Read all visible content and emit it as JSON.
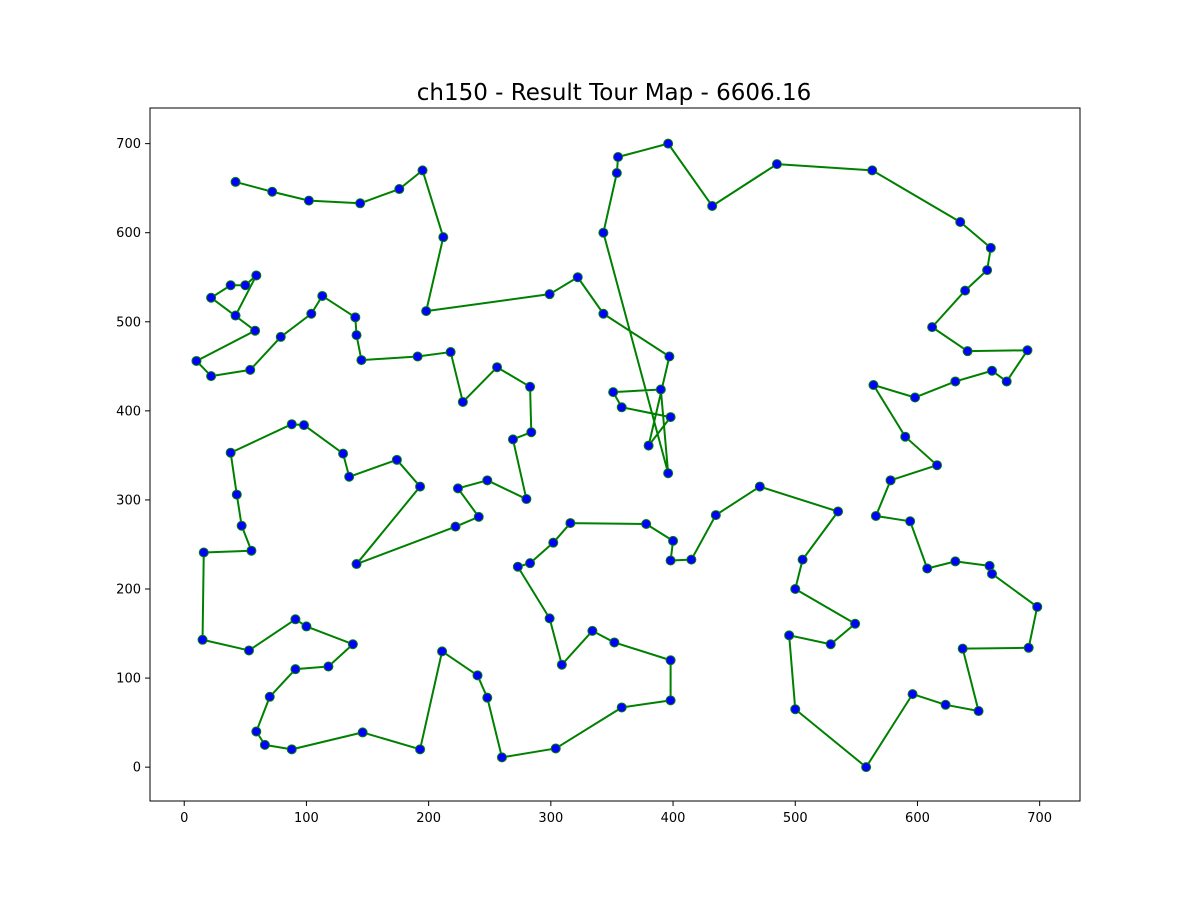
{
  "chart_data": {
    "type": "line",
    "title": "ch150 - Result Tour Map - 6606.16",
    "xlabel": "",
    "ylabel": "",
    "xlim": [
      -28,
      733
    ],
    "ylim": [
      -38,
      740
    ],
    "xticks": [
      0,
      100,
      200,
      300,
      400,
      500,
      600,
      700
    ],
    "yticks": [
      0,
      100,
      200,
      300,
      400,
      500,
      600,
      700
    ],
    "xtick_labels": [
      "0",
      "100",
      "200",
      "300",
      "400",
      "500",
      "600",
      "700"
    ],
    "ytick_labels": [
      "0",
      "100",
      "200",
      "300",
      "400",
      "500",
      "600",
      "700"
    ],
    "grid": false,
    "legend": "none",
    "colors": {
      "route": "#008000",
      "city": "#0000ff",
      "frame": "#000000"
    },
    "series": [
      {
        "x": [
          42,
          72,
          102,
          144,
          176,
          195,
          212,
          198,
          299,
          322,
          343,
          397,
          380,
          398,
          358,
          351,
          390,
          396,
          343,
          354,
          355,
          396,
          432,
          485,
          563,
          635,
          660,
          657,
          639,
          612,
          641,
          690,
          673,
          661,
          631,
          598,
          564,
          590,
          616,
          578,
          566,
          594,
          608,
          631,
          659,
          661,
          698,
          691,
          637,
          650,
          623,
          596,
          558,
          500,
          495,
          529,
          549,
          500,
          506,
          535,
          471,
          435,
          415,
          398,
          400,
          378,
          316,
          302,
          283,
          273,
          299,
          309,
          334,
          352,
          398,
          398,
          358,
          304,
          260,
          248,
          240,
          211,
          193,
          146,
          88,
          66,
          59,
          70,
          91,
          118,
          138,
          100,
          91,
          53,
          15,
          16,
          55,
          47,
          43,
          38,
          88,
          98,
          130,
          135,
          174,
          193,
          141,
          222,
          241,
          224,
          248,
          280,
          269,
          284,
          283,
          256,
          228,
          218,
          191,
          145,
          141,
          140,
          113,
          104,
          79,
          54,
          22,
          10,
          58,
          22,
          38,
          50,
          59,
          42,
          41
        ],
        "y": [
          657,
          646,
          636,
          633,
          649,
          670,
          595,
          512,
          531,
          550,
          509,
          461,
          361,
          393,
          404,
          421,
          424,
          330,
          600,
          667,
          685,
          700,
          630,
          677,
          670,
          612,
          583,
          558,
          535,
          494,
          467,
          468,
          433,
          445,
          433,
          415,
          429,
          371,
          339,
          322,
          282,
          276,
          223,
          231,
          226,
          217,
          180,
          134,
          133,
          63,
          70,
          82,
          0,
          65,
          148,
          138,
          161,
          200,
          233,
          287,
          315,
          283,
          233,
          232,
          254,
          273,
          274,
          252,
          229,
          225,
          167,
          115,
          153,
          140,
          120,
          75,
          67,
          21,
          11,
          78,
          103,
          130,
          20,
          39,
          20,
          25,
          40,
          79,
          110,
          113,
          138,
          158,
          166,
          131,
          143,
          241,
          243,
          271,
          306,
          353,
          385,
          384,
          352,
          326,
          345,
          315,
          228,
          270,
          281,
          313,
          322,
          301,
          368,
          376,
          427,
          449,
          410,
          466,
          461,
          457,
          485,
          505,
          529,
          509,
          483,
          446,
          439,
          456,
          490,
          527,
          541,
          541,
          552,
          507,
          507
        ]
      }
    ]
  }
}
